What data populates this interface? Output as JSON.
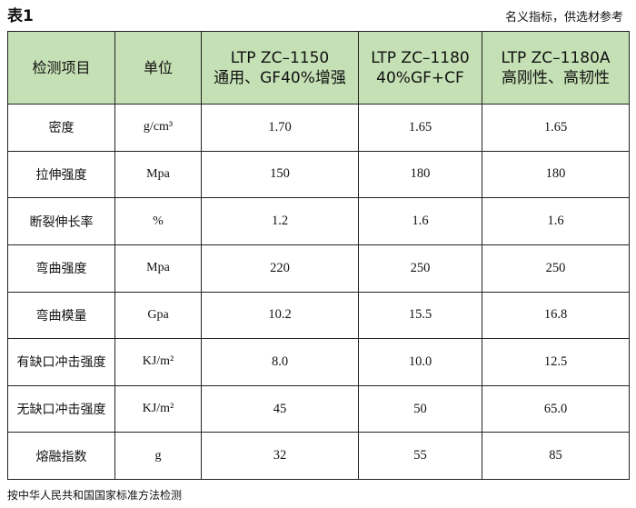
{
  "title": "表1",
  "note": "名义指标，供选材参考",
  "header": {
    "item": "检测项目",
    "unit": "单位",
    "products": [
      {
        "line1": "LTP ZC–1150",
        "line2": "通用、GF40%增强"
      },
      {
        "line1": "LTP ZC–1180",
        "line2": "40%GF+CF"
      },
      {
        "line1": "LTP ZC–1180A",
        "line2": "高刚性、高韧性"
      }
    ]
  },
  "rows": [
    {
      "name": "密度",
      "unit": "g/cm³",
      "v1": "1.70",
      "v2": "1.65",
      "v3": "1.65"
    },
    {
      "name": "拉伸强度",
      "unit": "Mpa",
      "v1": "150",
      "v2": "180",
      "v3": "180"
    },
    {
      "name": "断裂伸长率",
      "unit": "%",
      "v1": "1.2",
      "v2": "1.6",
      "v3": "1.6"
    },
    {
      "name": "弯曲强度",
      "unit": "Mpa",
      "v1": "220",
      "v2": "250",
      "v3": "250"
    },
    {
      "name": "弯曲模量",
      "unit": "Gpa",
      "v1": "10.2",
      "v2": "15.5",
      "v3": "16.8"
    },
    {
      "name": "有缺口冲击强度",
      "unit": "KJ/m²",
      "v1": "8.0",
      "v2": "10.0",
      "v3": "12.5"
    },
    {
      "name": "无缺口冲击强度",
      "unit": "KJ/m²",
      "v1": "45",
      "v2": "50",
      "v3": "65.0"
    },
    {
      "name": "熔融指数",
      "unit": "g",
      "v1": "32",
      "v2": "55",
      "v3": "85"
    }
  ],
  "footer": "按中华人民共和国国家标准方法检测"
}
